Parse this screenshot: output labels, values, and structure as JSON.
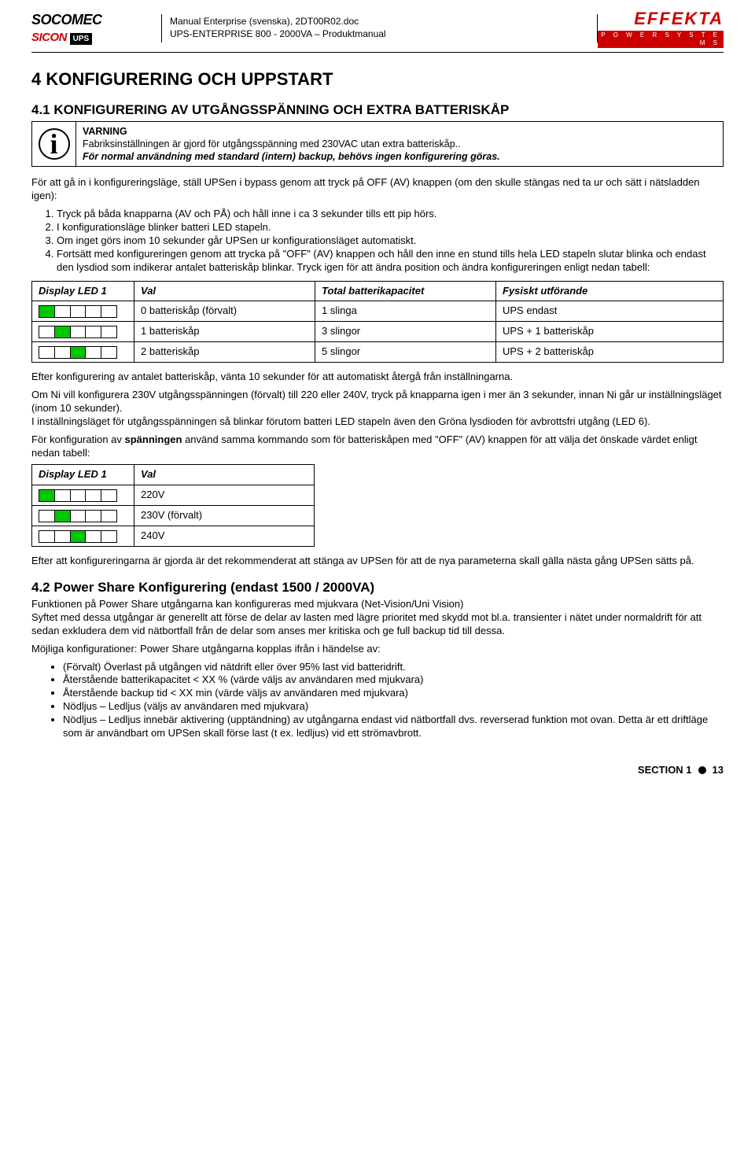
{
  "header": {
    "doc_title": "Manual Enterprise (svenska), 2DT00R02.doc",
    "doc_sub": "UPS-ENTERPRISE 800 - 2000VA – Produktmanual",
    "logo_left": {
      "line1": "SOCOMEC",
      "line2": "SICON",
      "ups": "UPS"
    },
    "logo_right": {
      "brand": "EFFEKTA",
      "sub": "P O W E R  S Y S T E M S"
    }
  },
  "s4": {
    "heading": "4   KONFIGURERING OCH UPPSTART",
    "s41": {
      "heading": "4.1   KONFIGURERING AV UTGÅNGSSPÄNNING OCH EXTRA BATTERISKÅP",
      "warning": {
        "title": "VARNING",
        "line1": "Fabriksinställningen är gjord för utgångsspänning med 230VAC utan extra batteriskåp..",
        "line2": "För normal användning med standard (intern) backup, behövs ingen konfigurering göras."
      },
      "para1": "För att gå in i konfigureringsläge, ställ UPSen i bypass genom att tryck på OFF (AV) knappen (om den skulle stängas ned ta ur och sätt i nätsladden igen):",
      "steps": [
        "Tryck på båda knapparna (AV och PÅ) och håll inne i ca 3 sekunder tills ett pip hörs.",
        "I konfigurationsläge blinker batteri LED stapeln.",
        "Om inget görs inom 10 sekunder går UPSen ur konfigurationsläget automatiskt.",
        "Fortsätt med konfigureringen genom att trycka på \"OFF\" (AV) knappen och håll den inne en stund tills hela LED stapeln slutar blinka och endast den lysdiod som indikerar antalet batteriskåp blinkar. Tryck igen för att ändra position och ändra konfigureringen enligt nedan tabell:"
      ],
      "table1": {
        "headers": [
          "Display LED 1",
          "Val",
          "Total batterikapacitet",
          "Fysiskt utförande"
        ],
        "rows": [
          {
            "leds": [
              1,
              0,
              0,
              0,
              0
            ],
            "val": "0 batteriskåp (förvalt)",
            "cap": "1 slinga",
            "phys": "UPS endast"
          },
          {
            "leds": [
              0,
              1,
              0,
              0,
              0
            ],
            "val": "1 batteriskåp",
            "cap": "3 slingor",
            "phys": "UPS + 1 batteriskåp"
          },
          {
            "leds": [
              0,
              0,
              1,
              0,
              0
            ],
            "val": "2 batteriskåp",
            "cap": "5 slingor",
            "phys": "UPS + 2 batteriskåp"
          }
        ]
      },
      "para2": "Efter konfigurering av antalet batteriskåp, vänta 10 sekunder för att automatiskt återgå från inställningarna.",
      "para3": "Om Ni vill konfigurera 230V utgångsspänningen (förvalt) till 220 eller 240V, tryck på knapparna igen i mer än 3 sekunder, innan Ni går ur inställningsläget (inom 10 sekunder).",
      "para4": "I inställningsläget för utgångsspänningen så blinkar förutom batteri LED stapeln även den Gröna lysdioden för avbrottsfri utgång (LED 6).",
      "para5a": "För konfiguration av ",
      "para5b": "spänningen",
      "para5c": " använd samma kommando som för batteriskåpen med \"OFF\" (AV) knappen för att välja det önskade värdet enligt nedan tabell:",
      "table2": {
        "headers": [
          "Display LED 1",
          "Val"
        ],
        "rows": [
          {
            "leds": [
              1,
              0,
              0,
              0,
              0
            ],
            "val": "220V"
          },
          {
            "leds": [
              0,
              1,
              0,
              0,
              0
            ],
            "val": "230V (förvalt)"
          },
          {
            "leds": [
              0,
              0,
              1,
              0,
              0
            ],
            "val": "240V"
          }
        ]
      },
      "para6": "Efter att konfigureringarna är gjorda är det rekommenderat att stänga av UPSen för att de nya parameterna skall gälla nästa gång UPSen sätts på."
    },
    "s42": {
      "heading": "4.2   Power Share Konfigurering (endast 1500 / 2000VA)",
      "para1": "Funktionen på Power Share utgångarna kan konfigureras med mjukvara (Net-Vision/Uni Vision)",
      "para2": "Syftet med dessa utgångar är generellt att förse de delar av lasten med lägre prioritet med skydd mot bl.a. transienter i nätet under normaldrift för att sedan exkludera dem vid nätbortfall från de delar som anses mer kritiska och ge full backup tid till dessa.",
      "para3": "Möjliga konfigurationer: Power Share utgångarna kopplas ifrån i händelse av:",
      "bullets": [
        "(Förvalt) Överlast på utgången vid nätdrift eller över 95% last vid batteridrift.",
        "Återstående batterikapacitet < XX % (värde väljs av användaren med mjukvara)",
        "Återstående backup tid < XX min (värde väljs av användaren med mjukvara)",
        "Nödljus – Ledljus (väljs av användaren med mjukvara)",
        " Nödljus – Ledljus innebär aktivering (upptändning) av utgångarna endast vid nätbortfall dvs. reverserad funktion mot ovan. Detta är ett driftläge som är användbart om UPSen skall förse last (t ex. ledljus) vid ett strömavbrott."
      ]
    }
  },
  "footer": {
    "section": "SECTION 1",
    "page": "13"
  },
  "colors": {
    "led_on": "#00c800",
    "accent": "#c00000"
  }
}
